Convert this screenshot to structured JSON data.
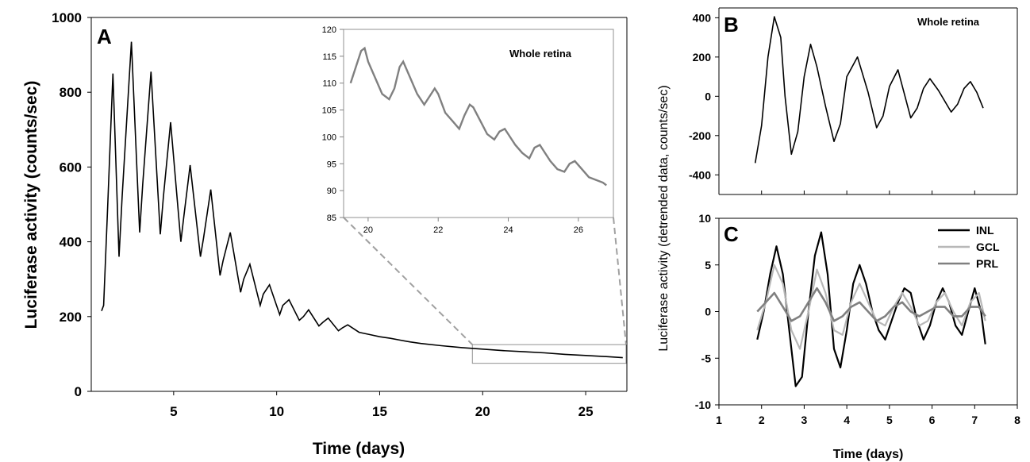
{
  "chart_data": [
    {
      "panel": "A",
      "type": "line",
      "xlabel": "Time (days)",
      "ylabel": "Luciferase activity (counts/sec)",
      "xlim": [
        1,
        27
      ],
      "ylim": [
        0,
        1000
      ],
      "xticks": [
        5,
        10,
        15,
        20,
        25
      ],
      "yticks": [
        0,
        200,
        400,
        600,
        800,
        1000
      ],
      "grid": false,
      "series": [
        {
          "color": "#000000",
          "x": [
            1.5,
            1.6,
            1.8,
            2.05,
            2.35,
            2.5,
            2.95,
            3.35,
            3.5,
            3.9,
            4.35,
            4.5,
            4.85,
            5.35,
            5.5,
            5.8,
            6.3,
            6.45,
            6.8,
            7.25,
            7.4,
            7.75,
            8.25,
            8.4,
            8.7,
            9.2,
            9.35,
            9.65,
            10.15,
            10.3,
            10.6,
            11.1,
            11.3,
            11.55,
            12.05,
            12.25,
            12.5,
            13.0,
            13.2,
            13.45,
            14.0,
            14.5,
            15.0,
            15.5,
            16.0,
            16.5,
            17.0,
            18.0,
            19.0,
            20.0,
            21.0,
            22.0,
            23.0,
            24.0,
            25.0,
            26.0,
            26.8
          ],
          "y": [
            215,
            230,
            500,
            850,
            360,
            520,
            935,
            425,
            555,
            855,
            420,
            520,
            720,
            400,
            470,
            605,
            360,
            410,
            540,
            310,
            350,
            425,
            265,
            300,
            340,
            230,
            260,
            285,
            205,
            230,
            245,
            190,
            200,
            218,
            175,
            185,
            196,
            162,
            170,
            178,
            158,
            152,
            146,
            142,
            137,
            132,
            128,
            122,
            117,
            113,
            109,
            106,
            103,
            99,
            96,
            93,
            90
          ]
        }
      ],
      "zoom_range": {
        "x": [
          19.5,
          27
        ],
        "y": [
          75,
          125
        ]
      }
    },
    {
      "panel": "A-inset",
      "type": "line",
      "annotation": "Whole retina",
      "xlim": [
        19.3,
        27
      ],
      "ylim": [
        85,
        120
      ],
      "xticks": [
        20,
        22,
        24,
        26
      ],
      "yticks": [
        85,
        90,
        95,
        100,
        105,
        110,
        115,
        120
      ],
      "series": [
        {
          "color": "#808080",
          "x": [
            19.5,
            19.6,
            19.8,
            19.9,
            20.0,
            20.2,
            20.4,
            20.6,
            20.75,
            20.9,
            21.0,
            21.2,
            21.4,
            21.6,
            21.75,
            21.9,
            22.0,
            22.2,
            22.4,
            22.6,
            22.75,
            22.9,
            23.0,
            23.2,
            23.4,
            23.6,
            23.75,
            23.9,
            24.0,
            24.2,
            24.4,
            24.6,
            24.75,
            24.9,
            25.0,
            25.2,
            25.4,
            25.6,
            25.75,
            25.9,
            26.1,
            26.3,
            26.5,
            26.7,
            26.8
          ],
          "y": [
            110,
            112,
            116,
            116.5,
            114,
            111,
            108,
            107,
            109,
            113,
            114,
            111,
            108,
            106,
            107.5,
            109,
            108,
            104.5,
            103,
            101.5,
            104,
            106,
            105.5,
            103,
            100.5,
            99.5,
            101,
            101.5,
            100.5,
            98.5,
            97,
            96,
            98,
            98.5,
            97.5,
            95.5,
            94,
            93.5,
            95,
            95.5,
            94,
            92.5,
            92,
            91.5,
            91
          ]
        }
      ]
    },
    {
      "panel": "B",
      "type": "line",
      "annotation": "Whole retina",
      "xlim": [
        1,
        8
      ],
      "ylim": [
        -500,
        450
      ],
      "yticks": [
        -400,
        -200,
        0,
        200,
        400
      ],
      "series": [
        {
          "color": "#000000",
          "x": [
            1.85,
            2.0,
            2.15,
            2.3,
            2.45,
            2.55,
            2.7,
            2.85,
            3.0,
            3.15,
            3.3,
            3.5,
            3.7,
            3.85,
            4.0,
            4.25,
            4.5,
            4.7,
            4.85,
            5.0,
            5.2,
            5.5,
            5.65,
            5.8,
            5.95,
            6.15,
            6.45,
            6.6,
            6.75,
            6.9,
            7.05,
            7.2
          ],
          "y": [
            -340,
            -150,
            200,
            405,
            300,
            0,
            -295,
            -180,
            100,
            265,
            150,
            -50,
            -230,
            -140,
            100,
            200,
            20,
            -160,
            -100,
            50,
            135,
            -110,
            -60,
            40,
            90,
            30,
            -80,
            -40,
            40,
            75,
            20,
            -60
          ]
        }
      ]
    },
    {
      "panel": "C",
      "type": "line",
      "xlabel": "Time (days)",
      "ylabel": "Luciferase activity (detrended data, counts/sec)",
      "xlim": [
        1,
        8
      ],
      "ylim": [
        -10,
        10
      ],
      "xticks": [
        1,
        2,
        3,
        4,
        5,
        6,
        7,
        8
      ],
      "yticks": [
        -10,
        -5,
        0,
        5,
        10
      ],
      "legend": "top-right",
      "series": [
        {
          "name": "INL",
          "color": "#000000",
          "x": [
            1.9,
            2.05,
            2.2,
            2.35,
            2.5,
            2.65,
            2.8,
            2.95,
            3.1,
            3.25,
            3.4,
            3.55,
            3.7,
            3.85,
            4.0,
            4.15,
            4.3,
            4.45,
            4.6,
            4.75,
            4.9,
            5.05,
            5.2,
            5.35,
            5.5,
            5.65,
            5.8,
            5.95,
            6.1,
            6.25,
            6.4,
            6.55,
            6.7,
            6.85,
            7.0,
            7.15,
            7.25
          ],
          "y": [
            -3,
            0,
            4,
            7,
            4,
            -2,
            -8,
            -7,
            0,
            6,
            8.5,
            4,
            -4,
            -6,
            -2,
            3,
            5,
            3,
            0,
            -2,
            -3,
            -1,
            1,
            2.5,
            2,
            -1,
            -3,
            -1.5,
            1,
            2.5,
            1,
            -1.5,
            -2.5,
            0,
            2.5,
            0,
            -3.5
          ]
        },
        {
          "name": "GCL",
          "color": "#b8b8b8",
          "x": [
            1.9,
            2.1,
            2.3,
            2.5,
            2.7,
            2.9,
            3.1,
            3.3,
            3.5,
            3.7,
            3.9,
            4.1,
            4.3,
            4.5,
            4.7,
            4.9,
            5.1,
            5.3,
            5.5,
            5.7,
            5.9,
            6.1,
            6.3,
            6.5,
            6.7,
            6.9,
            7.1,
            7.25
          ],
          "y": [
            -2,
            1,
            5,
            3,
            -2,
            -4,
            0,
            4.5,
            2,
            -2,
            -2.5,
            1,
            3,
            1,
            -1,
            -1.5,
            0.5,
            2,
            0.5,
            -1.5,
            -1,
            1,
            2,
            0,
            -1.5,
            1,
            2,
            -1
          ]
        },
        {
          "name": "PRL",
          "color": "#808080",
          "x": [
            1.9,
            2.1,
            2.3,
            2.5,
            2.7,
            2.9,
            3.1,
            3.3,
            3.5,
            3.7,
            3.9,
            4.1,
            4.3,
            4.5,
            4.7,
            4.9,
            5.1,
            5.3,
            5.5,
            5.7,
            5.9,
            6.1,
            6.3,
            6.5,
            6.7,
            6.9,
            7.1,
            7.25
          ],
          "y": [
            0,
            1,
            2,
            0.5,
            -1,
            -0.5,
            1,
            2.5,
            1,
            -1,
            -0.5,
            0.5,
            1,
            0,
            -1,
            -0.5,
            0.5,
            1,
            0,
            -0.5,
            0,
            0.5,
            0.5,
            -0.5,
            -0.5,
            0.5,
            0.5,
            -0.5
          ]
        }
      ]
    }
  ],
  "panel_labels": {
    "a": "A",
    "b": "B",
    "c": "C"
  },
  "notes": {
    "inset": "Whole retina",
    "b": "Whole retina"
  }
}
